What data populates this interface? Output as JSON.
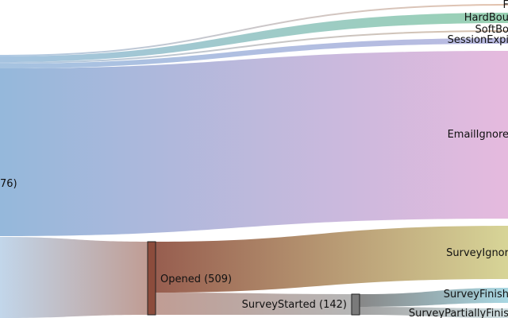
{
  "diagram": {
    "type": "sankey",
    "colors": {
      "source_blue": "#8fb4d9",
      "failed": "#d8a98b",
      "hard_bounce": "#7fc6a0",
      "soft_bounce": "#c9a88a",
      "session_expired": "#a9a9da",
      "email_ignored": "#e4b6dc",
      "opened": "#8c4c3c",
      "survey_ignored": "#d3d08c",
      "survey_started": "#7a7a7a",
      "survey_finished": "#9fd3df",
      "survey_partially_finished": "#bcd2d6"
    },
    "nodes": [
      {
        "id": "source",
        "label": "76)"
      },
      {
        "id": "failed",
        "label": "F"
      },
      {
        "id": "hard_bounce",
        "label": "HardBou"
      },
      {
        "id": "soft_bounce",
        "label": "SoftBo"
      },
      {
        "id": "session_expired",
        "label": "SessionExpi"
      },
      {
        "id": "email_ignored",
        "label": "EmailIgnore"
      },
      {
        "id": "opened",
        "label": "Opened (509)"
      },
      {
        "id": "survey_ignored",
        "label": "SurveyIgnor"
      },
      {
        "id": "survey_started",
        "label": "SurveyStarted (142)"
      },
      {
        "id": "survey_finished",
        "label": "SurveyFinish"
      },
      {
        "id": "survey_partially_finished",
        "label": "SurveyPartiallyFinis"
      }
    ],
    "links": [
      {
        "from": "source",
        "to": "failed"
      },
      {
        "from": "source",
        "to": "hard_bounce"
      },
      {
        "from": "source",
        "to": "soft_bounce"
      },
      {
        "from": "source",
        "to": "session_expired"
      },
      {
        "from": "source",
        "to": "email_ignored"
      },
      {
        "from": "source",
        "to": "opened",
        "value": 509
      },
      {
        "from": "opened",
        "to": "survey_ignored"
      },
      {
        "from": "opened",
        "to": "survey_started",
        "value": 142
      },
      {
        "from": "survey_started",
        "to": "survey_finished"
      },
      {
        "from": "survey_started",
        "to": "survey_partially_finished"
      }
    ]
  }
}
